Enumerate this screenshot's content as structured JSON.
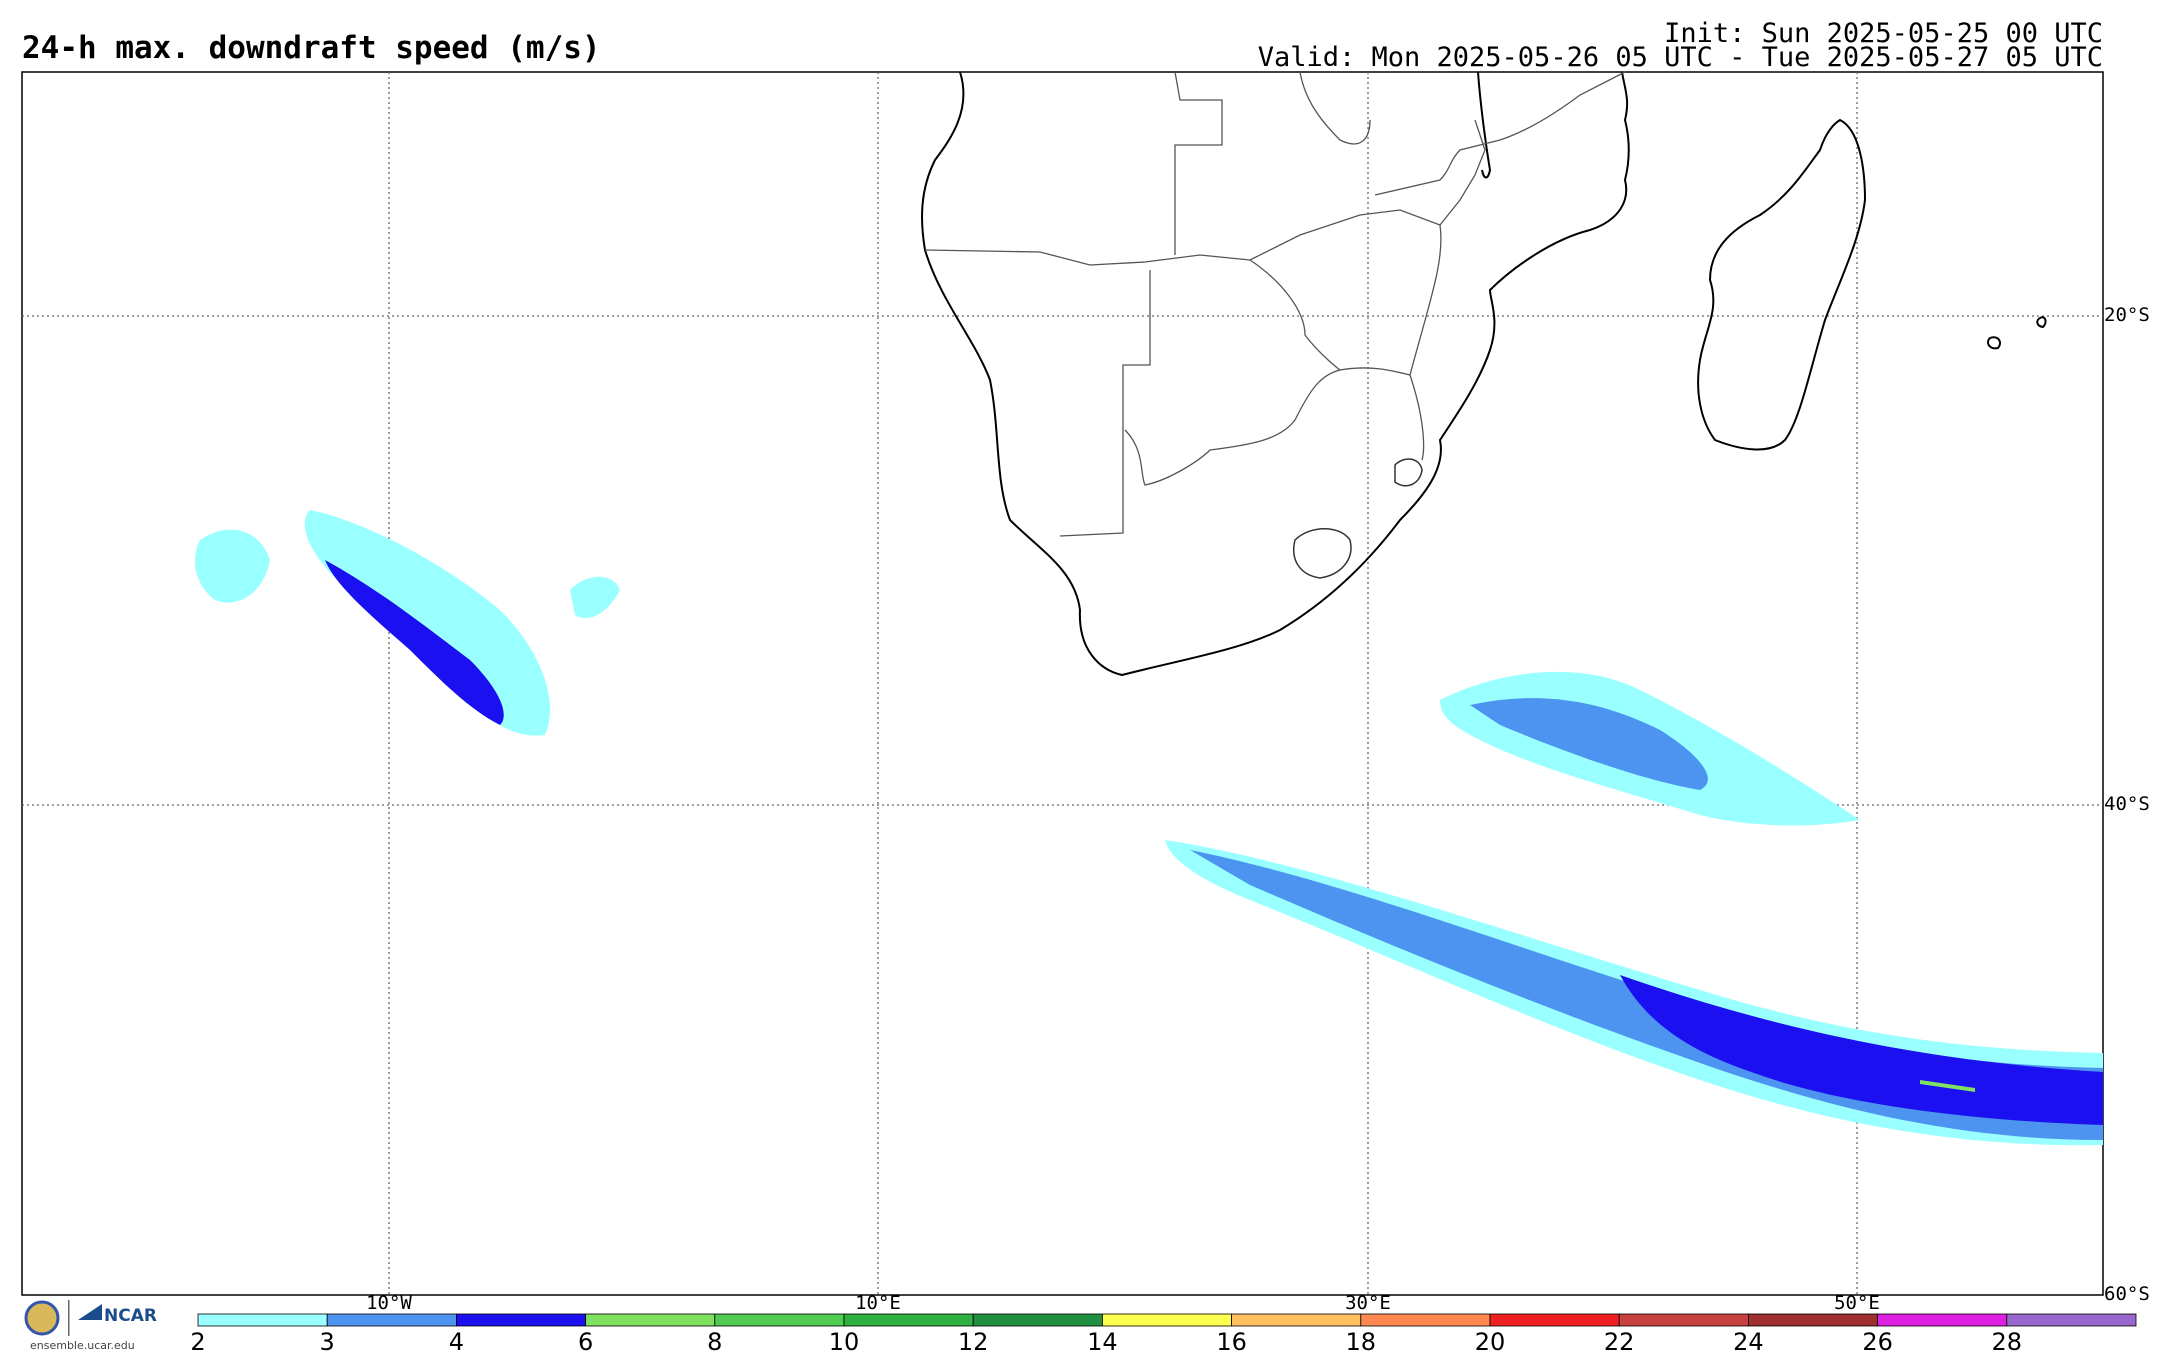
{
  "header": {
    "title": "24-h max. downdraft speed (m/s)",
    "init": "Init: Sun 2025-05-25 00 UTC",
    "valid": "Valid: Mon 2025-05-26 05 UTC - Tue 2025-05-27 05 UTC"
  },
  "map": {
    "lat_labels": [
      "20°S",
      "40°S",
      "60°S"
    ],
    "lon_labels": [
      "10°W",
      "10°E",
      "30°E",
      "50°E"
    ],
    "colors": {
      "land_border": "#000000",
      "country_border": "#555555",
      "grid": "#555555"
    }
  },
  "colorbar": {
    "labels": [
      "2",
      "3",
      "4",
      "6",
      "8",
      "10",
      "12",
      "14",
      "16",
      "18",
      "20",
      "22",
      "24",
      "26",
      "28"
    ],
    "colors": [
      "#99ffff",
      "#4d94f0",
      "#1a10f0",
      "#80e060",
      "#50cc50",
      "#30b040",
      "#209040",
      "#ffff50",
      "#ffc060",
      "#ff8850",
      "#f02020",
      "#c84040",
      "#a03030",
      "#e020e0",
      "#9966cc"
    ]
  },
  "logo": {
    "org": "NCAR",
    "seal_icon": "nsf-seal-icon",
    "url": "ensemble.ucar.edu"
  }
}
